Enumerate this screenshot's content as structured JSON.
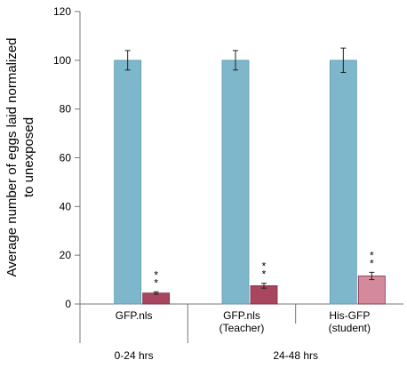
{
  "chart_data": {
    "type": "bar",
    "ylabel": "Average number of eggs laid normalized to unexposed",
    "ylabel_lines": [
      "Average number of eggs laid normalized",
      "to unexposed"
    ],
    "ylim": [
      0,
      120
    ],
    "yticks": [
      0,
      20,
      40,
      60,
      80,
      100,
      120
    ],
    "categories": [
      {
        "label_lines": [
          "GFP.nls"
        ],
        "group": "0-24 hrs"
      },
      {
        "label_lines": [
          "GFP.nls",
          "(Teacher)"
        ],
        "group": "24-48 hrs"
      },
      {
        "label_lines": [
          "His-GFP",
          "(student)"
        ],
        "group": "24-48 hrs"
      }
    ],
    "groups": [
      "0-24 hrs",
      "24-48 hrs"
    ],
    "series": [
      {
        "values": [
          100,
          100,
          100
        ],
        "errors": [
          4,
          4,
          5
        ],
        "colors": [
          "#7eb6cb",
          "#7eb6cb",
          "#7eb6cb"
        ]
      },
      {
        "values": [
          4.5,
          7.5,
          11.5
        ],
        "errors": [
          0.5,
          1.0,
          1.5
        ],
        "colors": [
          "#a8465f",
          "#a8465f",
          "#d58a9c"
        ]
      }
    ],
    "annotations": [
      "* *",
      "* *",
      "* *"
    ],
    "grid": false,
    "legend": "none"
  }
}
